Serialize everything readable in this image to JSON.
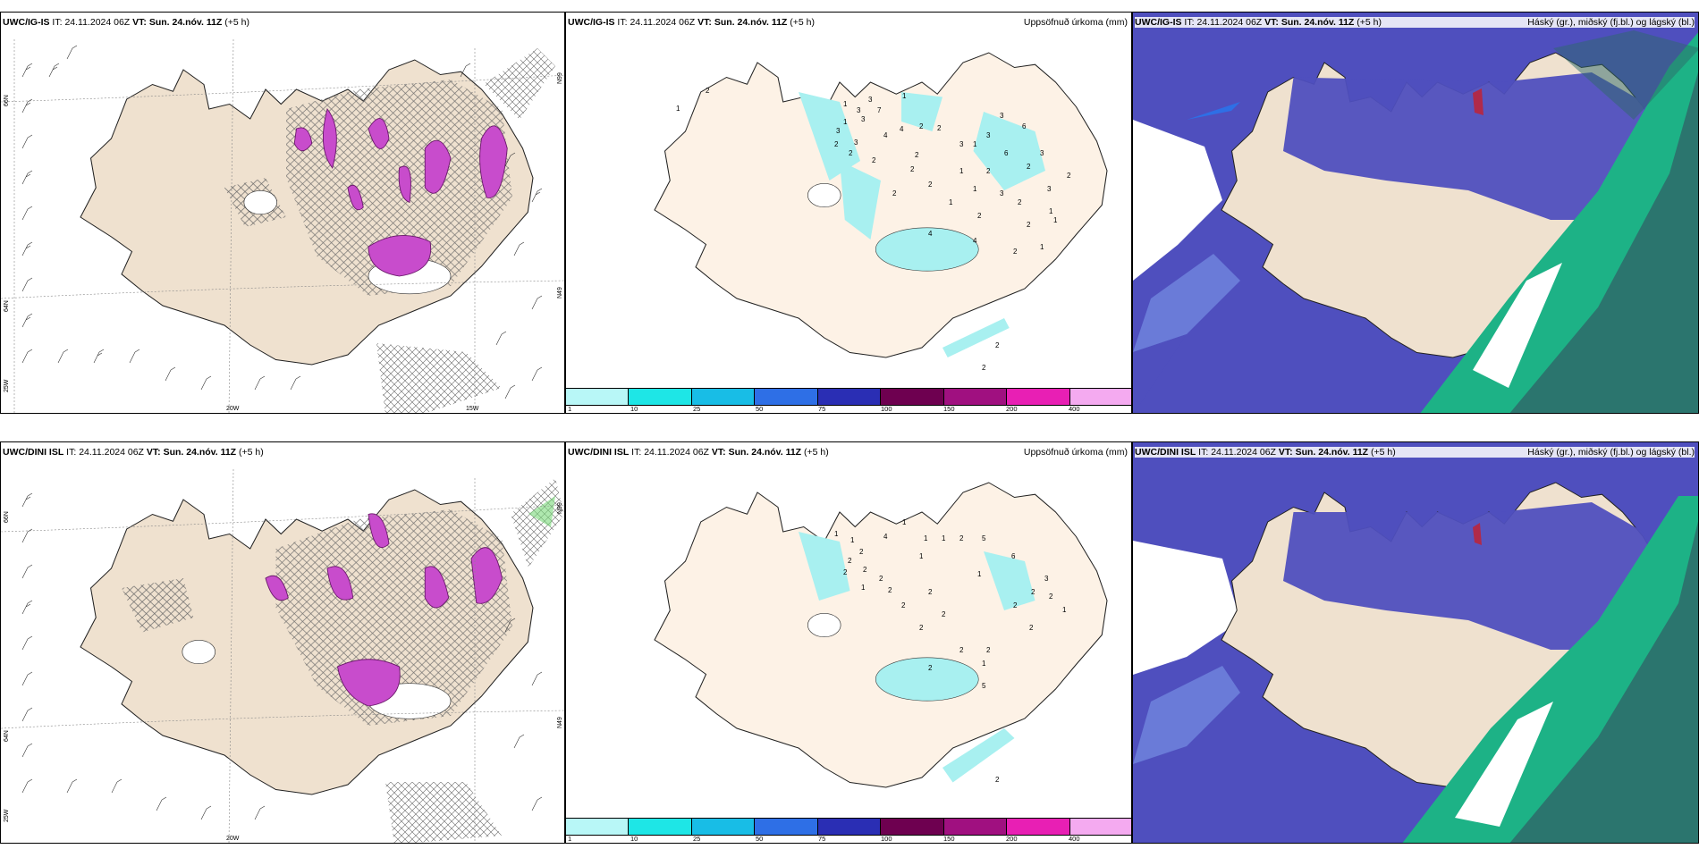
{
  "rows": [
    {
      "model": "UWC/IG-IS",
      "it_label": "IT:",
      "it_value": "24.11.2024 06Z",
      "vt_label": "VT:",
      "vt_value": "Sun. 24.nóv. 11Z",
      "lead": "(+5 h)"
    },
    {
      "model": "UWC/DINI ISL",
      "it_label": "IT:",
      "it_value": "24.11.2024 06Z",
      "vt_label": "VT:",
      "vt_value": "Sun. 24.nóv. 11Z",
      "lead": "(+5 h)"
    }
  ],
  "panel_titles": {
    "precip": "Uppsöfnuð úrkoma (mm)",
    "clouds": "Háský (gr.), miðský (fj.bl.) og lágský (bl.)"
  },
  "grid_labels": {
    "lat66": "66N",
    "lat64": "64N",
    "lon20": "20W",
    "lon15": "15W",
    "lon25": "25W",
    "lat66_right": "N99",
    "lat64_right": "N49"
  },
  "precip_colorbar": {
    "colors": [
      "#b8f7f7",
      "#1ee6e6",
      "#18bde6",
      "#2e6fe6",
      "#2a2eb4",
      "#6e0050",
      "#a01080",
      "#e81fb4",
      "#f4aaf0"
    ],
    "ticks": [
      "1",
      "10",
      "25",
      "50",
      "75",
      "100",
      "150",
      "200",
      "400"
    ]
  },
  "precip_labels_top": [
    "2",
    "1",
    "1",
    "3",
    "3",
    "7",
    "3",
    "1",
    "4",
    "1",
    "2",
    "3",
    "2",
    "2",
    "3",
    "2",
    "2",
    "2",
    "4",
    "2",
    "2",
    "2",
    "1",
    "2",
    "1",
    "1",
    "3",
    "6",
    "6",
    "3",
    "2",
    "2",
    "1",
    "3",
    "2",
    "1",
    "2",
    "1",
    "1",
    "3",
    "3",
    "3",
    "2",
    "4",
    "4",
    "2",
    "2",
    "2"
  ],
  "precip_labels_bottom": [
    "1",
    "1",
    "2",
    "2",
    "2",
    "2",
    "1",
    "1",
    "1",
    "1",
    "2",
    "5",
    "4",
    "1",
    "6",
    "2",
    "2",
    "2",
    "2",
    "2",
    "2",
    "1",
    "3",
    "2",
    "2",
    "2",
    "1",
    "2",
    "2",
    "1",
    "2",
    "2",
    "5",
    "2"
  ],
  "colors": {
    "land": "#efe1cf",
    "land_light": "#fdf2e6",
    "cyan_precip": "#a8f0f0",
    "magenta": "#c84ccc",
    "mid_cloud": "#4f4fbe",
    "high_cloud_green": "#1db286",
    "dark_teal": "#2e6a6a"
  }
}
